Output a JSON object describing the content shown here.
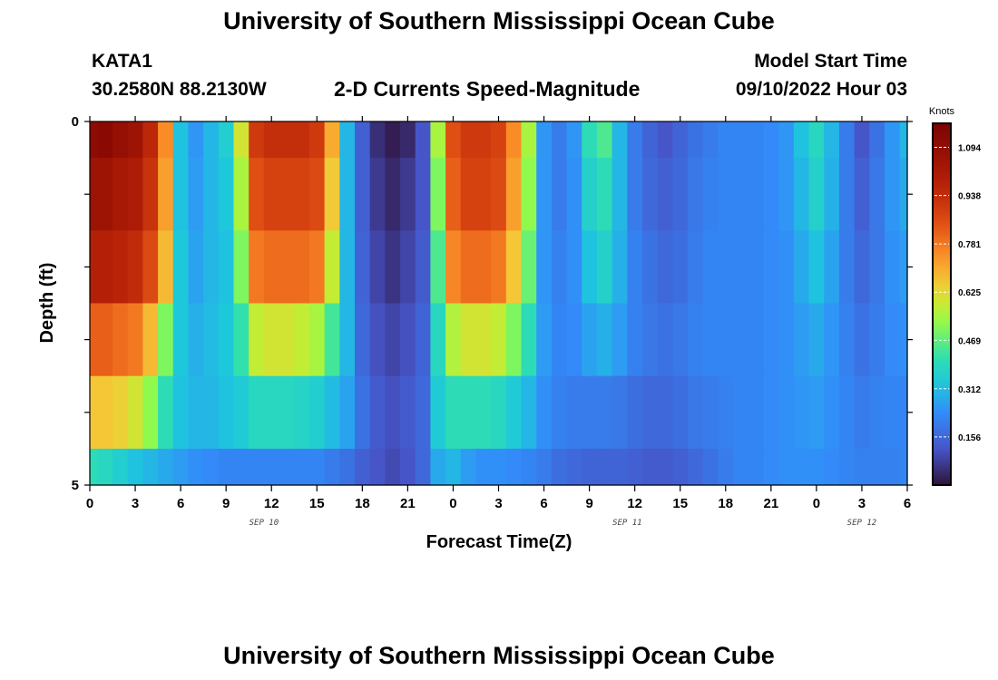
{
  "title": "University of Southern Mississippi Ocean Cube",
  "station": {
    "name": "KATA1",
    "coords": "30.2580N  88.2130W"
  },
  "plot_title": "2-D Currents Speed-Magnitude",
  "model_start": {
    "label": "Model Start Time",
    "value": "09/10/2022 Hour 03"
  },
  "bottom_title": "University of Southern Mississippi Ocean Cube",
  "chart_data": {
    "type": "heatmap",
    "title": "2-D Currents Speed-Magnitude",
    "xlabel": "Forecast Time(Z)",
    "ylabel": "Depth (ft)",
    "x_range_hours": [
      0,
      54
    ],
    "y_range": [
      0,
      5
    ],
    "y_ticks": [
      "0",
      "5"
    ],
    "x_tick_labels": [
      "0",
      "3",
      "6",
      "9",
      "12",
      "15",
      "18",
      "21",
      "0",
      "3",
      "6",
      "9",
      "12",
      "15",
      "18",
      "21",
      "0",
      "3",
      "6"
    ],
    "day_labels": [
      {
        "text": "SEP 10",
        "hour": 11.5
      },
      {
        "text": "SEP 11",
        "hour": 35.5
      },
      {
        "text": "SEP 12",
        "hour": 51
      }
    ],
    "depth_layers": [
      0.5,
      1.5,
      2.5,
      3.5,
      4.5,
      5.0
    ],
    "time_hours": [
      0,
      1,
      2,
      3,
      4,
      5,
      6,
      7,
      8,
      9,
      10,
      11,
      12,
      13,
      14,
      15,
      16,
      17,
      18,
      19,
      20,
      21,
      22,
      23,
      24,
      25,
      26,
      27,
      28,
      29,
      30,
      31,
      32,
      33,
      34,
      35,
      36,
      37,
      38,
      39,
      40,
      41,
      42,
      43,
      44,
      45,
      46,
      47,
      48,
      49,
      50,
      51,
      52,
      53,
      54
    ],
    "speed_knots": [
      [
        1.1,
        1.12,
        1.08,
        1.05,
        0.95,
        0.75,
        0.32,
        0.25,
        0.3,
        0.35,
        0.6,
        0.9,
        0.93,
        0.93,
        0.93,
        0.9,
        0.7,
        0.3,
        0.14,
        0.05,
        0.02,
        0.04,
        0.12,
        0.55,
        0.85,
        0.9,
        0.9,
        0.88,
        0.75,
        0.55,
        0.25,
        0.2,
        0.25,
        0.4,
        0.45,
        0.3,
        0.2,
        0.15,
        0.12,
        0.15,
        0.18,
        0.2,
        0.22,
        0.22,
        0.22,
        0.23,
        0.25,
        0.32,
        0.38,
        0.3,
        0.2,
        0.12,
        0.18,
        0.25,
        0.3
      ],
      [
        1.05,
        1.05,
        1.02,
        1.0,
        0.92,
        0.72,
        0.32,
        0.26,
        0.3,
        0.33,
        0.55,
        0.85,
        0.88,
        0.88,
        0.88,
        0.86,
        0.65,
        0.3,
        0.14,
        0.07,
        0.04,
        0.07,
        0.12,
        0.5,
        0.82,
        0.88,
        0.88,
        0.86,
        0.72,
        0.52,
        0.25,
        0.2,
        0.24,
        0.36,
        0.4,
        0.3,
        0.2,
        0.16,
        0.14,
        0.16,
        0.19,
        0.21,
        0.22,
        0.22,
        0.22,
        0.23,
        0.25,
        0.3,
        0.36,
        0.29,
        0.2,
        0.14,
        0.19,
        0.25,
        0.28
      ],
      [
        0.98,
        0.98,
        0.96,
        0.94,
        0.86,
        0.68,
        0.33,
        0.27,
        0.3,
        0.32,
        0.5,
        0.78,
        0.8,
        0.8,
        0.8,
        0.78,
        0.58,
        0.3,
        0.15,
        0.09,
        0.06,
        0.09,
        0.13,
        0.45,
        0.76,
        0.8,
        0.8,
        0.78,
        0.66,
        0.48,
        0.25,
        0.21,
        0.24,
        0.32,
        0.36,
        0.29,
        0.21,
        0.18,
        0.16,
        0.17,
        0.2,
        0.22,
        0.22,
        0.22,
        0.22,
        0.23,
        0.24,
        0.28,
        0.32,
        0.27,
        0.2,
        0.16,
        0.19,
        0.24,
        0.26
      ],
      [
        0.82,
        0.82,
        0.8,
        0.78,
        0.68,
        0.5,
        0.33,
        0.29,
        0.31,
        0.33,
        0.42,
        0.58,
        0.6,
        0.6,
        0.58,
        0.55,
        0.44,
        0.3,
        0.16,
        0.11,
        0.09,
        0.11,
        0.15,
        0.38,
        0.56,
        0.6,
        0.6,
        0.58,
        0.5,
        0.4,
        0.26,
        0.22,
        0.23,
        0.27,
        0.29,
        0.26,
        0.21,
        0.19,
        0.18,
        0.19,
        0.21,
        0.22,
        0.22,
        0.22,
        0.22,
        0.23,
        0.24,
        0.26,
        0.28,
        0.25,
        0.21,
        0.18,
        0.2,
        0.23,
        0.24
      ],
      [
        0.66,
        0.66,
        0.64,
        0.6,
        0.52,
        0.4,
        0.32,
        0.3,
        0.3,
        0.32,
        0.34,
        0.38,
        0.38,
        0.38,
        0.37,
        0.35,
        0.31,
        0.27,
        0.18,
        0.13,
        0.11,
        0.13,
        0.16,
        0.34,
        0.4,
        0.4,
        0.4,
        0.38,
        0.34,
        0.3,
        0.24,
        0.21,
        0.2,
        0.2,
        0.2,
        0.19,
        0.17,
        0.16,
        0.16,
        0.17,
        0.19,
        0.2,
        0.21,
        0.22,
        0.22,
        0.23,
        0.24,
        0.25,
        0.26,
        0.24,
        0.22,
        0.2,
        0.21,
        0.22,
        0.22
      ],
      [
        0.4,
        0.38,
        0.35,
        0.32,
        0.3,
        0.28,
        0.26,
        0.24,
        0.23,
        0.22,
        0.22,
        0.22,
        0.22,
        0.22,
        0.22,
        0.22,
        0.2,
        0.18,
        0.14,
        0.12,
        0.1,
        0.12,
        0.16,
        0.28,
        0.3,
        0.26,
        0.24,
        0.24,
        0.23,
        0.22,
        0.2,
        0.17,
        0.16,
        0.15,
        0.15,
        0.15,
        0.14,
        0.13,
        0.13,
        0.14,
        0.16,
        0.18,
        0.2,
        0.22,
        0.22,
        0.23,
        0.24,
        0.24,
        0.24,
        0.23,
        0.22,
        0.21,
        0.21,
        0.21,
        0.22
      ]
    ],
    "colorbar": {
      "label": "Knots",
      "min": 0.0,
      "max": 1.172,
      "tick_labels": [
        "1.094",
        "0.938",
        "0.781",
        "0.625",
        "0.469",
        "0.312",
        "0.156"
      ]
    }
  }
}
